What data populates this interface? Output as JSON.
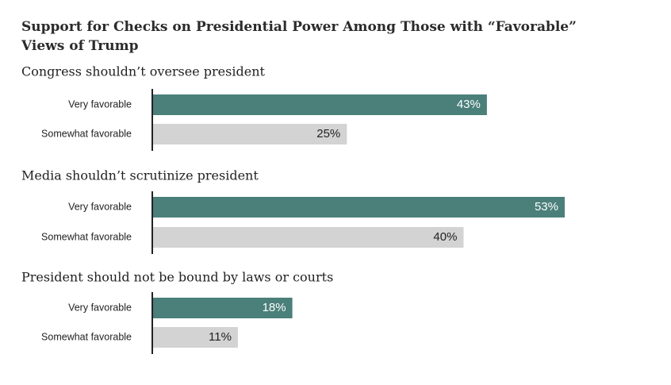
{
  "title": "Support for Checks on Presidential Power Among Those with “Favorable” Views of Trump",
  "colors": {
    "very_favorable": "#4a7f7a",
    "somewhat_favorable": "#d3d3d3",
    "axis": "#222222",
    "label_on_dark": "#ffffff",
    "label_on_light": "#222222"
  },
  "chart_data": {
    "type": "bar",
    "orientation": "horizontal",
    "xlim": [
      0,
      60
    ],
    "value_suffix": "%",
    "groups": [
      {
        "title": "Congress shouldn’t oversee president",
        "bars": [
          {
            "label": "Very favorable",
            "value": 43,
            "value_label": "43%"
          },
          {
            "label": "Somewhat favorable",
            "value": 25,
            "value_label": "25%"
          }
        ]
      },
      {
        "title": "Media shouldn’t scrutinize president",
        "bars": [
          {
            "label": "Very favorable",
            "value": 53,
            "value_label": "53%"
          },
          {
            "label": "Somewhat favorable",
            "value": 40,
            "value_label": "40%"
          }
        ]
      },
      {
        "title": "President should not be bound by laws or courts",
        "bars": [
          {
            "label": "Very favorable",
            "value": 18,
            "value_label": "18%"
          },
          {
            "label": "Somewhat favorable",
            "value": 11,
            "value_label": "11%"
          }
        ]
      }
    ]
  }
}
